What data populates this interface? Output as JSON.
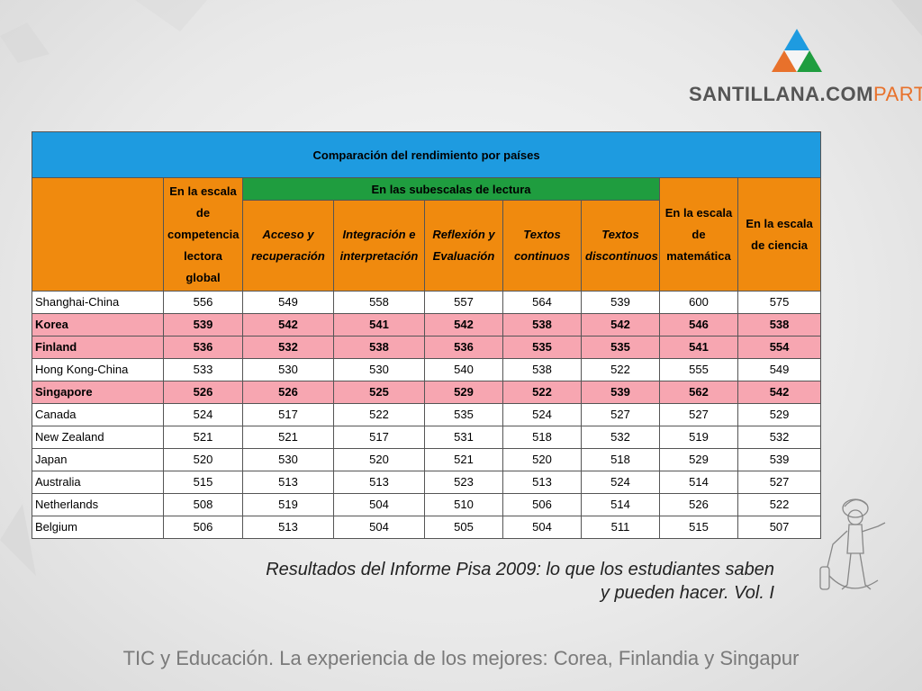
{
  "brand": {
    "name_part1": "SANTILLANA.COM",
    "name_part2": "PARTIR",
    "colors": {
      "blue": "#1e9be0",
      "green": "#1f9d3f",
      "orange": "#e8712b"
    }
  },
  "table": {
    "title": "Comparación del rendimiento por países",
    "colors": {
      "title_bg": "#1e9be0",
      "header_bg": "#f08a0e",
      "subheader_bg": "#1f9d3f",
      "highlight_bg": "#f7a6b1"
    },
    "headers": {
      "global": "En la escala de competencia lectora global",
      "subscales_group": "En las subescalas de lectura",
      "subscales": [
        "Acceso y recuperación",
        "Integración e interpretación",
        "Reflexión y Evaluación",
        "Textos continuos",
        "Textos discontinuos"
      ],
      "math": "En la escala de matemática",
      "science": "En la escala de ciencia"
    },
    "rows": [
      {
        "country": "Shanghai-China",
        "highlight": false,
        "values": [
          "556",
          "549",
          "558",
          "557",
          "564",
          "539",
          "600",
          "575"
        ]
      },
      {
        "country": "Korea",
        "highlight": true,
        "values": [
          "539",
          "542",
          "541",
          "542",
          "538",
          "542",
          "546",
          "538"
        ]
      },
      {
        "country": "Finland",
        "highlight": true,
        "values": [
          "536",
          "532",
          "538",
          "536",
          "535",
          "535",
          "541",
          "554"
        ]
      },
      {
        "country": "Hong Kong-China",
        "highlight": false,
        "values": [
          "533",
          "530",
          "530",
          "540",
          "538",
          "522",
          "555",
          "549"
        ]
      },
      {
        "country": "Singapore",
        "highlight": true,
        "values": [
          "526",
          "526",
          "525",
          "529",
          "522",
          "539",
          "562",
          "542"
        ]
      },
      {
        "country": "Canada",
        "highlight": false,
        "values": [
          "524",
          "517",
          "522",
          "535",
          "524",
          "527",
          "527",
          "529"
        ]
      },
      {
        "country": "New Zealand",
        "highlight": false,
        "values": [
          "521",
          "521",
          "517",
          "531",
          "518",
          "532",
          "519",
          "532"
        ]
      },
      {
        "country": "Japan",
        "highlight": false,
        "values": [
          "520",
          "530",
          "520",
          "521",
          "520",
          "518",
          "529",
          "539"
        ]
      },
      {
        "country": "Australia",
        "highlight": false,
        "values": [
          "515",
          "513",
          "513",
          "523",
          "513",
          "524",
          "514",
          "527"
        ]
      },
      {
        "country": "Netherlands",
        "highlight": false,
        "values": [
          "508",
          "519",
          "504",
          "510",
          "506",
          "514",
          "526",
          "522"
        ]
      },
      {
        "country": "Belgium",
        "highlight": false,
        "values": [
          "506",
          "513",
          "504",
          "505",
          "504",
          "511",
          "515",
          "507"
        ]
      }
    ]
  },
  "caption": {
    "line1": "Resultados del Informe Pisa 2009: lo que los estudiantes saben",
    "line2": "y pueden hacer. Vol. I"
  },
  "footer": "TIC y Educación. La experiencia de los mejores: Corea, Finlandia y Singapur"
}
